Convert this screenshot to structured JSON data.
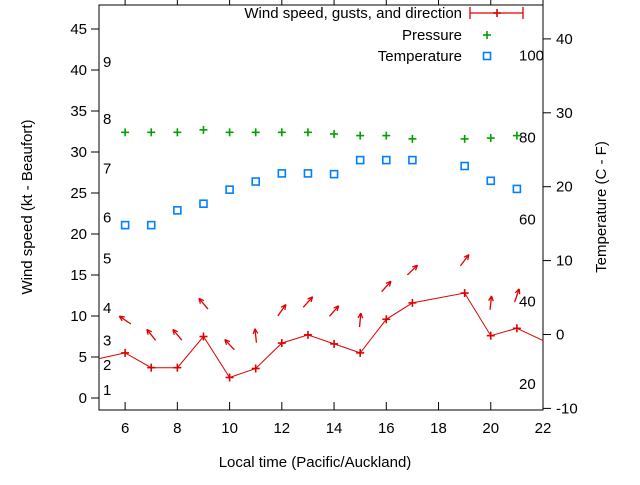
{
  "chart_data": {
    "type": "line",
    "title": "",
    "x_axis": {
      "label": "Local time (Pacific/Auckland)",
      "range": [
        5,
        22
      ],
      "ticks": [
        6,
        8,
        10,
        12,
        14,
        16,
        18,
        20,
        22
      ]
    },
    "y_left": {
      "label": "Wind speed (kt - Beaufort)",
      "ticks": [
        0,
        5,
        10,
        15,
        20,
        25,
        30,
        35,
        40,
        45
      ],
      "range": [
        -1.5,
        48
      ],
      "beaufort_scale": [
        {
          "label": "1",
          "kt": 1
        },
        {
          "label": "2",
          "kt": 4
        },
        {
          "label": "3",
          "kt": 7
        },
        {
          "label": "4",
          "kt": 11
        },
        {
          "label": "5",
          "kt": 17
        },
        {
          "label": "6",
          "kt": 22
        },
        {
          "label": "7",
          "kt": 28
        },
        {
          "label": "8",
          "kt": 34
        },
        {
          "label": "9",
          "kt": 41
        }
      ]
    },
    "y_right": {
      "label": "Temperature (C - F)",
      "ticks": [
        -10,
        0,
        10,
        20,
        30,
        40
      ],
      "range": [
        -10.2,
        44.7
      ],
      "fahrenheit_scale": [
        20,
        40,
        60,
        80,
        100
      ]
    },
    "series": [
      {
        "name": "Wind speed, gusts, and direction",
        "color": "#e00000",
        "style": "linespoints-errorbars",
        "marker": "plus",
        "axis": "left",
        "points": [
          {
            "hour": 5,
            "kt": 4.8,
            "marker": false
          },
          {
            "hour": 6,
            "kt": 5.5
          },
          {
            "hour": 7,
            "kt": 3.7
          },
          {
            "hour": 8,
            "kt": 3.7
          },
          {
            "hour": 9,
            "kt": 7.5
          },
          {
            "hour": 10,
            "kt": 2.5
          },
          {
            "hour": 11,
            "kt": 3.6
          },
          {
            "hour": 12,
            "kt": 6.7
          },
          {
            "hour": 13,
            "kt": 7.7
          },
          {
            "hour": 14,
            "kt": 6.6
          },
          {
            "hour": 15,
            "kt": 5.5
          },
          {
            "hour": 16,
            "kt": 9.6
          },
          {
            "hour": 17,
            "kt": 11.6
          },
          {
            "hour": 19,
            "kt": 12.8
          },
          {
            "hour": 20,
            "kt": 7.6
          },
          {
            "hour": 21,
            "kt": 8.5
          },
          {
            "hour": 22,
            "kt": 7.0,
            "marker": false
          }
        ]
      },
      {
        "name": "Pressure",
        "color": "#00a000",
        "style": "points",
        "marker": "plus",
        "axis": "hidden-pressure-scale",
        "points": [
          {
            "hour": 6,
            "level": 32.4
          },
          {
            "hour": 7,
            "level": 32.4
          },
          {
            "hour": 8,
            "level": 32.4
          },
          {
            "hour": 9,
            "level": 32.7
          },
          {
            "hour": 10,
            "level": 32.4
          },
          {
            "hour": 11,
            "level": 32.4
          },
          {
            "hour": 12,
            "level": 32.4
          },
          {
            "hour": 13,
            "level": 32.4
          },
          {
            "hour": 14,
            "level": 32.2
          },
          {
            "hour": 15,
            "level": 32.0
          },
          {
            "hour": 16,
            "level": 32.0
          },
          {
            "hour": 17,
            "level": 31.6
          },
          {
            "hour": 19,
            "level": 31.6
          },
          {
            "hour": 20,
            "level": 31.7
          },
          {
            "hour": 21,
            "level": 32.0
          }
        ]
      },
      {
        "name": "Temperature",
        "color": "#0080ff",
        "style": "points",
        "marker": "open-square",
        "axis": "right",
        "points": [
          {
            "hour": 6,
            "c": 14.8
          },
          {
            "hour": 7,
            "c": 14.8
          },
          {
            "hour": 8,
            "c": 16.8
          },
          {
            "hour": 9,
            "c": 17.7
          },
          {
            "hour": 10,
            "c": 19.6
          },
          {
            "hour": 11,
            "c": 20.7
          },
          {
            "hour": 12,
            "c": 21.8
          },
          {
            "hour": 13,
            "c": 21.8
          },
          {
            "hour": 14,
            "c": 21.7
          },
          {
            "hour": 15,
            "c": 23.6
          },
          {
            "hour": 16,
            "c": 23.6
          },
          {
            "hour": 17,
            "c": 23.6
          },
          {
            "hour": 19,
            "c": 22.8
          },
          {
            "hour": 20,
            "c": 20.8
          },
          {
            "hour": 21,
            "c": 19.7
          }
        ]
      }
    ],
    "wind_arrows": [
      {
        "hour": 6,
        "kt": 9.5,
        "angle_deg": 146
      },
      {
        "hour": 7,
        "kt": 7.7,
        "angle_deg": 129
      },
      {
        "hour": 8,
        "kt": 7.7,
        "angle_deg": 130
      },
      {
        "hour": 9,
        "kt": 11.5,
        "angle_deg": 130
      },
      {
        "hour": 10,
        "kt": 6.5,
        "angle_deg": 133
      },
      {
        "hour": 11,
        "kt": 7.6,
        "angle_deg": 96
      },
      {
        "hour": 12,
        "kt": 10.7,
        "angle_deg": 55
      },
      {
        "hour": 13,
        "kt": 11.7,
        "angle_deg": 48
      },
      {
        "hour": 14,
        "kt": 10.6,
        "angle_deg": 49
      },
      {
        "hour": 15,
        "kt": 9.5,
        "angle_deg": 85
      },
      {
        "hour": 16,
        "kt": 13.6,
        "angle_deg": 48
      },
      {
        "hour": 17,
        "kt": 15.6,
        "angle_deg": 44
      },
      {
        "hour": 19,
        "kt": 16.8,
        "angle_deg": 53
      },
      {
        "hour": 20,
        "kt": 11.6,
        "angle_deg": 84
      },
      {
        "hour": 21,
        "kt": 12.5,
        "angle_deg": 71
      }
    ],
    "legend_position": "top-right-inside",
    "grid": false,
    "colors": {
      "wind": "#e00000",
      "pressure": "#00a000",
      "temperature": "#0080ff",
      "axis": "#000000",
      "background": "#ffffff"
    }
  }
}
